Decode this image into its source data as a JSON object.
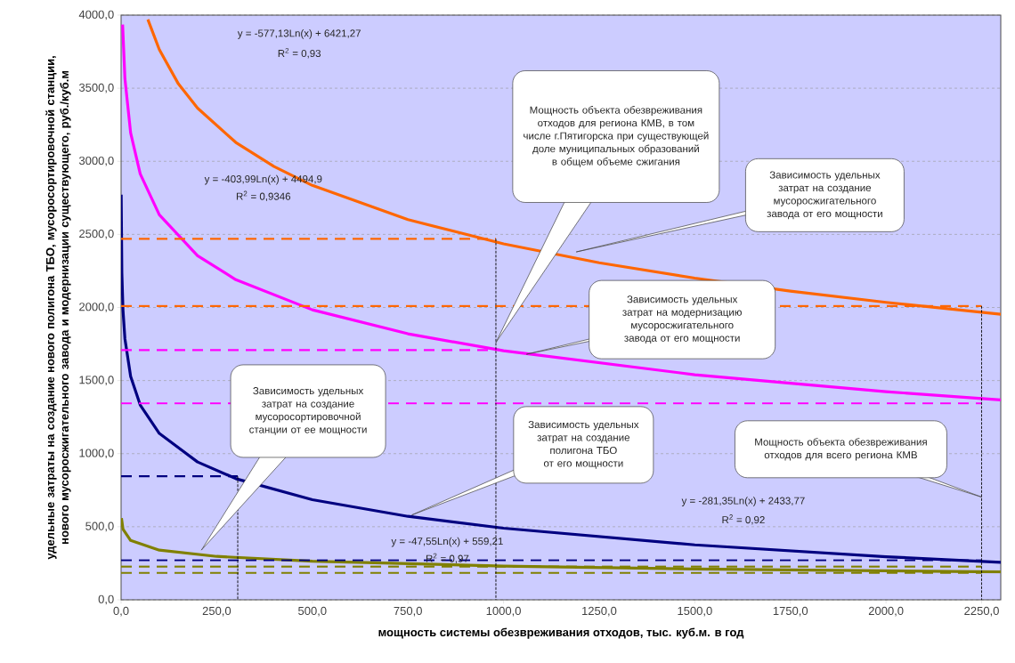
{
  "chart_data": {
    "type": "line",
    "xlabel": "мощность системы обезвреживания отходов, тыс. куб.м. в год",
    "ylabel": "удельные затраты на создание нового полигона ТБО, мусоросортировочной станции, нового мусоросжигательного завода и модернизации существующего, руб./куб.м",
    "xlim": [
      0,
      2300
    ],
    "ylim": [
      0,
      4000
    ],
    "xticks": [
      {
        "value": 0,
        "label": "0,0"
      },
      {
        "value": 250,
        "label": "250,0"
      },
      {
        "value": 500,
        "label": "500,0"
      },
      {
        "value": 750,
        "label": "750,0"
      },
      {
        "value": 1000,
        "label": "1000,0"
      },
      {
        "value": 1250,
        "label": "1250,0"
      },
      {
        "value": 1500,
        "label": "1500,0"
      },
      {
        "value": 1750,
        "label": "1750,0"
      },
      {
        "value": 2000,
        "label": "2000,0"
      },
      {
        "value": 2250,
        "label": "2250,0"
      }
    ],
    "yticks": [
      {
        "value": 0,
        "label": "0,0"
      },
      {
        "value": 500,
        "label": "500,0"
      },
      {
        "value": 1000,
        "label": "1000,0"
      },
      {
        "value": 1500,
        "label": "1500,0"
      },
      {
        "value": 2000,
        "label": "2000,0"
      },
      {
        "value": 2500,
        "label": "2500,0"
      },
      {
        "value": 3000,
        "label": "3000,0"
      },
      {
        "value": 3500,
        "label": "3500,0"
      },
      {
        "value": 4000,
        "label": "4000,0"
      }
    ],
    "grid": "y",
    "series": [
      {
        "color": "#ff6600",
        "line_style": "solid",
        "x": [
          70,
          100,
          150,
          200,
          300,
          400,
          500,
          750,
          1000,
          1250,
          1500,
          1750,
          2000,
          2300
        ],
        "values": [
          3970,
          3764,
          3529,
          3364,
          3129,
          2964,
          2835,
          2601,
          2435,
          2306,
          2201,
          2112,
          2035,
          1954
        ]
      },
      {
        "color": "#ff00ff",
        "line_style": "solid",
        "x": [
          4,
          10,
          25,
          50,
          100,
          200,
          300,
          500,
          750,
          1000,
          1500,
          2000,
          2300
        ],
        "values": [
          3935,
          3565,
          3194,
          2914,
          2634,
          2354,
          2190,
          1984,
          1820,
          1704,
          1540,
          1424,
          1368
        ]
      },
      {
        "color": "#000080",
        "line_style": "solid",
        "x": [
          0.3,
          2,
          5,
          10,
          25,
          50,
          100,
          200,
          300,
          500,
          750,
          1000,
          1500,
          2000,
          2300
        ],
        "values": [
          2772,
          2239,
          1981,
          1786,
          1528,
          1333,
          1138,
          943,
          829,
          685,
          571,
          490,
          376,
          295,
          256
        ]
      },
      {
        "color": "#808000",
        "line_style": "solid",
        "x": [
          1,
          5,
          25,
          100,
          250,
          500,
          1000,
          1500,
          2300
        ],
        "values": [
          559,
          483,
          406,
          340,
          297,
          264,
          231,
          211,
          191
        ]
      },
      {
        "color": "#ff6600",
        "line_style": "dashed",
        "x": [
          0,
          980
        ],
        "values": [
          2470,
          2470
        ]
      },
      {
        "color": "#ff6600",
        "line_style": "dashed",
        "x": [
          0,
          2250
        ],
        "values": [
          2010,
          2010
        ]
      },
      {
        "color": "#ff00ff",
        "line_style": "dashed",
        "x": [
          0,
          980
        ],
        "values": [
          1708,
          1708
        ]
      },
      {
        "color": "#ff00ff",
        "line_style": "dashed",
        "x": [
          0,
          2250
        ],
        "values": [
          1344,
          1344
        ]
      },
      {
        "color": "#000080",
        "line_style": "dashed",
        "x": [
          0,
          305
        ],
        "values": [
          845,
          845
        ]
      },
      {
        "color": "#000080",
        "line_style": "dashed",
        "x": [
          0,
          2250
        ],
        "values": [
          271,
          271
        ]
      },
      {
        "color": "#808000",
        "line_style": "dashed",
        "x": [
          0,
          2250
        ],
        "values": [
          228,
          228
        ]
      },
      {
        "color": "#808000",
        "line_style": "dashed",
        "x": [
          0,
          2250
        ],
        "values": [
          185,
          185
        ]
      },
      {
        "color": "#000000",
        "line_style": "dotted",
        "x": [
          305,
          305
        ],
        "values": [
          845,
          0
        ]
      },
      {
        "color": "#000000",
        "line_style": "dotted",
        "x": [
          980,
          980
        ],
        "values": [
          2470,
          0
        ]
      },
      {
        "color": "#000000",
        "line_style": "dotted",
        "x": [
          2250,
          2250
        ],
        "values": [
          2010,
          0
        ]
      }
    ],
    "annotations": [
      "y = -577,13Ln(x) + 6421,27",
      "R$^{2}$ = 0,93",
      "y = -403,99Ln(x) + 4494,9",
      "R$^{2}$ = 0,9346",
      "y = -47,55Ln(x) + 559,21",
      "R$^{2}$ = 0,97",
      "y = -281,35Ln(x) + 2433,77",
      "R$^{2}$ = 0,92",
      "Мощность объекта обезвреживания отходов для региона КМВ, в том числе г.Пятигорска при существующей доле муниципальных образований в общем объеме сжигания",
      "Зависимость удельных затрат на создание мусоросжигательного завода от его мощности",
      "Зависимость удельных затрат на модернизацию мусоросжигательного завода от его мощности",
      "Зависимость удельных затрат на создание мусоросортировочной станции от ее мощности",
      "Зависимость удельных затрат на создание полигона ТБО от его мощности",
      "Мощность объекта обезвреживания отходов для всего региона КМВ"
    ]
  }
}
